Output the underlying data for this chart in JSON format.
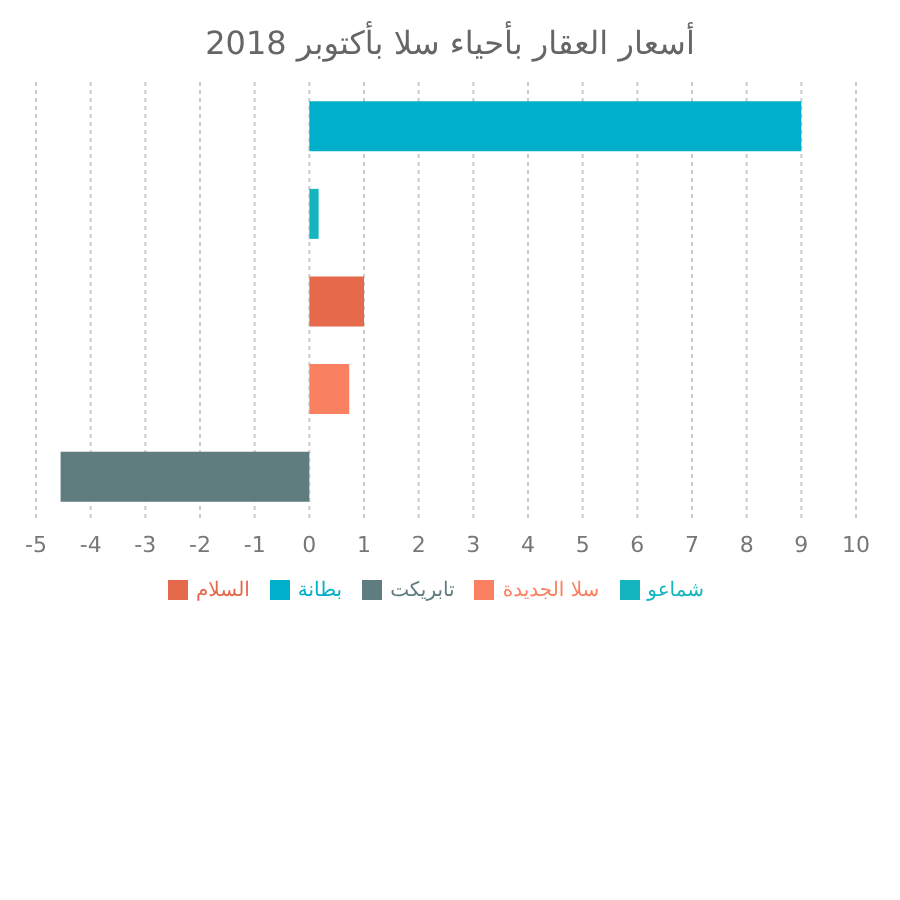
{
  "chart_data": {
    "type": "bar",
    "orientation": "horizontal",
    "title": "أسعار العقار بأحياء سلا بأكتوبر 2018",
    "categories": [
      null,
      null,
      null,
      null,
      null
    ],
    "series": [
      {
        "name": "بطانة",
        "color": "#00afca",
        "values": [
          9,
          null,
          null,
          null,
          null
        ]
      },
      {
        "name": "شماعو",
        "color": "#14b5bf",
        "values": [
          null,
          0.17,
          null,
          null,
          null
        ]
      },
      {
        "name": "السلام",
        "color": "#e5694b",
        "values": [
          null,
          null,
          1,
          null,
          null
        ]
      },
      {
        "name": "سلا الجديدة",
        "color": "#fa8062",
        "values": [
          null,
          null,
          null,
          0.73,
          null
        ]
      },
      {
        "name": "تابريكت",
        "color": "#5f7c7f",
        "values": [
          null,
          null,
          null,
          null,
          -4.55
        ]
      }
    ],
    "xlim": [
      -5,
      10
    ],
    "xticks": [
      -5,
      -4,
      -3,
      -2,
      -1,
      0,
      1,
      2,
      3,
      4,
      5,
      6,
      7,
      8,
      9,
      10
    ],
    "grid": "x",
    "legend": "bottom",
    "tick_labels": "x"
  }
}
